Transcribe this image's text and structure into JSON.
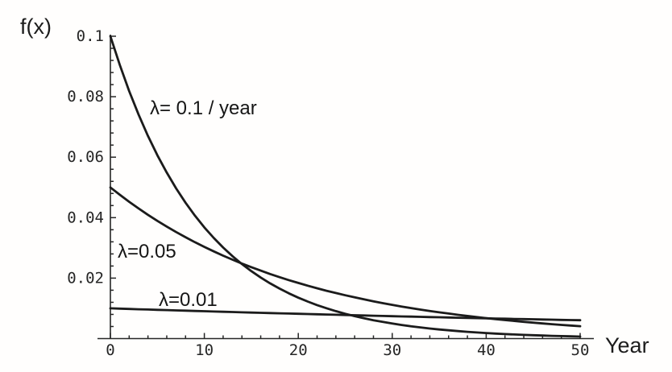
{
  "figure": {
    "background": "#fffefd",
    "ink_color": "#1b1b1b"
  },
  "chart_data": {
    "type": "line",
    "title": "",
    "xlabel": "Year",
    "ylabel": "f(x)",
    "xlim": [
      0,
      50
    ],
    "ylim": [
      0,
      0.1
    ],
    "grid": false,
    "legend": "inline-annotations",
    "x_ticks": {
      "values": [
        0,
        10,
        20,
        30,
        40,
        50
      ],
      "labels": [
        "0",
        "10",
        "20",
        "30",
        "40",
        "50"
      ],
      "minor_step": 2
    },
    "y_ticks": {
      "values": [
        0.02,
        0.04,
        0.06,
        0.08,
        0.1
      ],
      "labels": [
        "0.02",
        "0.04",
        "0.06",
        "0.08",
        "0.1"
      ],
      "minor_step": 0.004
    },
    "x": [
      0,
      1,
      2,
      3,
      4,
      5,
      6,
      7,
      8,
      9,
      10,
      11,
      12,
      13,
      14,
      15,
      16,
      17,
      18,
      19,
      20,
      21,
      22,
      23,
      24,
      25,
      26,
      27,
      28,
      29,
      30,
      31,
      32,
      33,
      34,
      35,
      36,
      37,
      38,
      39,
      40,
      41,
      42,
      43,
      44,
      45,
      46,
      47,
      48,
      49,
      50
    ],
    "series": [
      {
        "name": "λ= 0.1 / year",
        "lambda": 0.1,
        "values": [
          0.1,
          0.09048,
          0.08187,
          0.07408,
          0.06703,
          0.06065,
          0.05488,
          0.04966,
          0.04493,
          0.04066,
          0.03679,
          0.03329,
          0.03012,
          0.02725,
          0.02466,
          0.02231,
          0.02019,
          0.01827,
          0.01653,
          0.01496,
          0.01353,
          0.01225,
          0.01108,
          0.01003,
          0.00907,
          0.00821,
          0.00743,
          0.00672,
          0.00608,
          0.0055,
          0.00498,
          0.0045,
          0.00408,
          0.00369,
          0.00334,
          0.00302,
          0.00273,
          0.00247,
          0.00224,
          0.00202,
          0.00183,
          0.00166,
          0.0015,
          0.00136,
          0.00123,
          0.00111,
          0.00101,
          0.00091,
          0.00082,
          0.00074,
          0.00067
        ]
      },
      {
        "name": "λ=0.05",
        "lambda": 0.05,
        "values": [
          0.05,
          0.04756,
          0.04524,
          0.04304,
          0.04094,
          0.03894,
          0.03704,
          0.03523,
          0.03352,
          0.03188,
          0.03033,
          0.02885,
          0.02744,
          0.0261,
          0.02483,
          0.02362,
          0.02247,
          0.02137,
          0.02033,
          0.01934,
          0.01839,
          0.0175,
          0.01664,
          0.01583,
          0.01506,
          0.01433,
          0.01363,
          0.01296,
          0.01233,
          0.01173,
          0.01116,
          0.01061,
          0.0101,
          0.0096,
          0.00914,
          0.00869,
          0.00827,
          0.00786,
          0.00748,
          0.00711,
          0.00677,
          0.00644,
          0.00612,
          0.00582,
          0.00554,
          0.00527,
          0.00501,
          0.00477,
          0.00454,
          0.00431,
          0.0041
        ]
      },
      {
        "name": "λ=0.01",
        "lambda": 0.01,
        "values": [
          0.01,
          0.0099,
          0.0098,
          0.0097,
          0.00961,
          0.00951,
          0.00942,
          0.00932,
          0.00923,
          0.00914,
          0.00905,
          0.00896,
          0.00887,
          0.00878,
          0.00869,
          0.00861,
          0.00852,
          0.00844,
          0.00835,
          0.00827,
          0.00819,
          0.00811,
          0.00803,
          0.00795,
          0.00787,
          0.00779,
          0.00771,
          0.00763,
          0.00756,
          0.00748,
          0.00741,
          0.00733,
          0.00726,
          0.00719,
          0.00712,
          0.00705,
          0.00698,
          0.00691,
          0.00684,
          0.00677,
          0.0067,
          0.00664,
          0.00657,
          0.0065,
          0.00644,
          0.00638,
          0.00631,
          0.00625,
          0.00619,
          0.00613,
          0.00607
        ]
      }
    ]
  }
}
